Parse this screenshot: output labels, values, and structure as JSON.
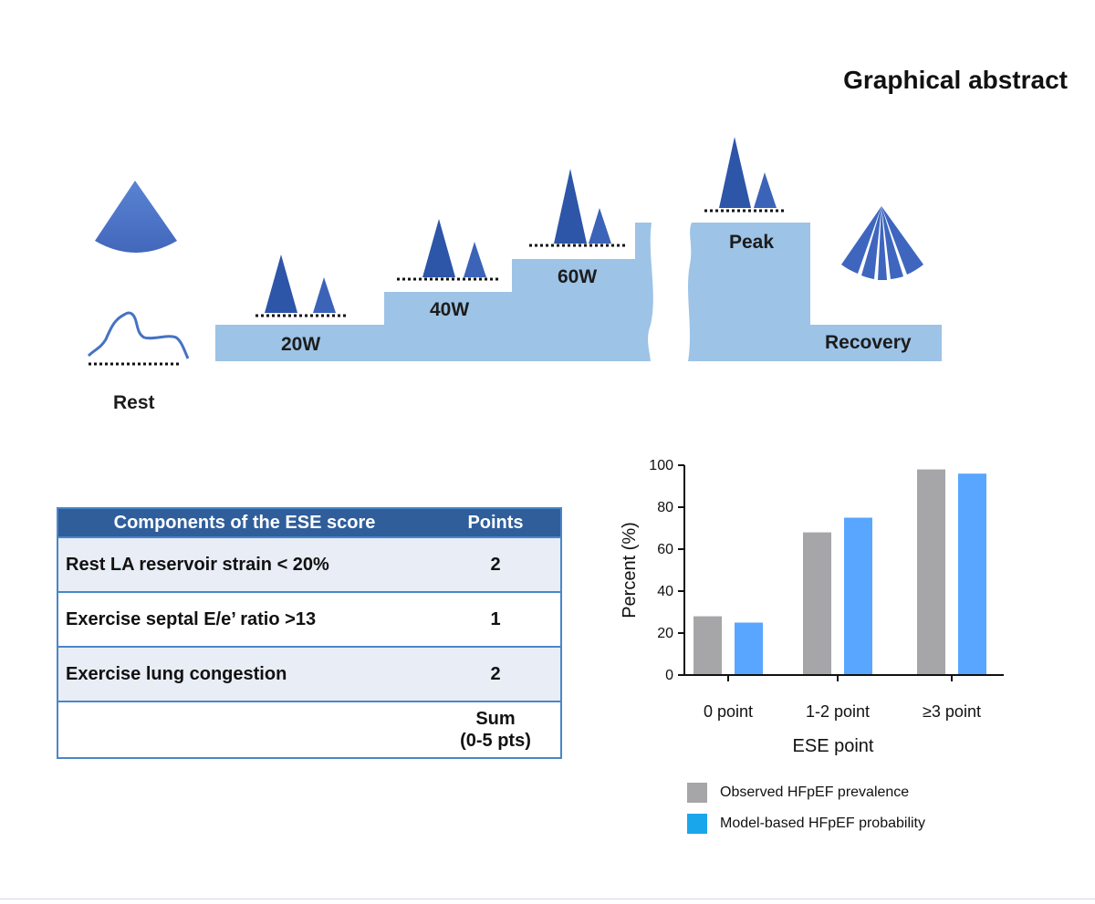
{
  "title": "Graphical abstract",
  "stages": {
    "rest": "Rest",
    "w20": "20W",
    "w40": "40W",
    "w60": "60W",
    "peak": "Peak",
    "recovery": "Recovery"
  },
  "colors": {
    "step_fill": "#9dc3e6",
    "wave_blue": "#2d55a8",
    "wave_blue_light": "#5279c9",
    "table_header": "#2f5e9b",
    "table_border": "#4a86c8",
    "bar_observed": "#a6a6a9",
    "bar_model": "#58a6ff",
    "legend_model": "#1aa6ea"
  },
  "icons": [
    "probe-sector-icon",
    "la-strain-curve-icon",
    "lung-ultrasound-icon"
  ],
  "table": {
    "headers": [
      "Components of the ESE score",
      "Points"
    ],
    "rows": [
      {
        "component": "Rest LA reservoir strain < 20%",
        "points": "2"
      },
      {
        "component": "Exercise septal E/e’ ratio >13",
        "points": "1"
      },
      {
        "component": "Exercise lung congestion",
        "points": "2"
      }
    ],
    "sum_line1": "Sum",
    "sum_line2": "(0-5 pts)"
  },
  "chart_data": {
    "type": "bar",
    "categories": [
      "0 point",
      "1-2 point",
      "≥3 point"
    ],
    "series": [
      {
        "name": "Observed HFpEF prevalence",
        "values": [
          28,
          68,
          98
        ]
      },
      {
        "name": "Model-based HFpEF probability",
        "values": [
          25,
          75,
          96
        ]
      }
    ],
    "xlabel": "ESE point",
    "ylabel": "Percent (%)",
    "ylim": [
      0,
      100
    ],
    "yticks": [
      0,
      20,
      40,
      60,
      80,
      100
    ],
    "grid": false,
    "legend_position": "bottom"
  }
}
